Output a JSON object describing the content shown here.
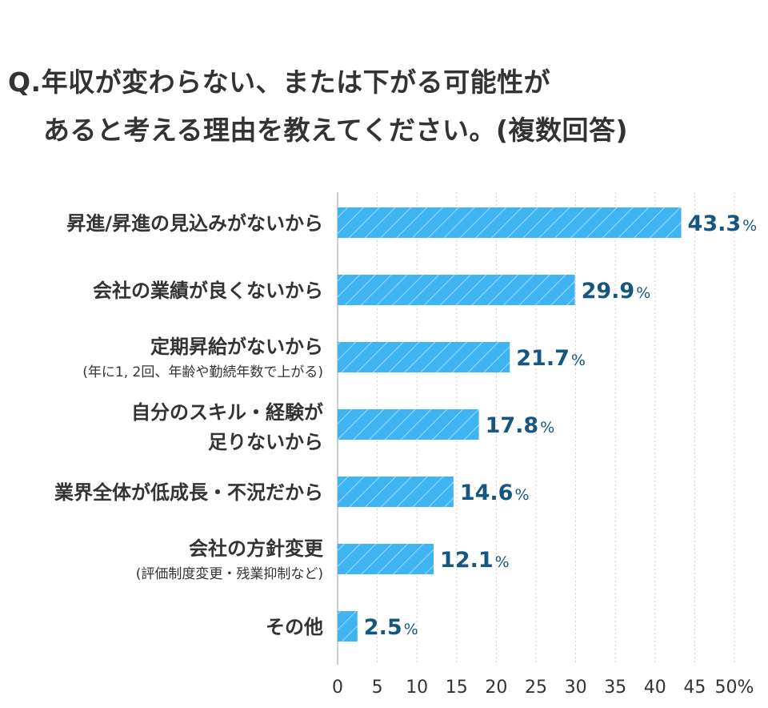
{
  "title": {
    "line1": "Q.年収が変わらない、または下がる可能性が",
    "line2": "あると考える理由を教えてください。(複数回答)"
  },
  "chart_data": {
    "type": "bar",
    "orientation": "horizontal",
    "categories": [
      [
        "昇進/昇進の見込みがないから"
      ],
      [
        "会社の業績が良くないから"
      ],
      [
        "定期昇給がないから",
        "(年に1, 2回、年齢や勤続年数で上がる)"
      ],
      [
        "自分のスキル・経験が",
        "足りないから"
      ],
      [
        "業界全体が低成長・不況だから"
      ],
      [
        "会社の方針変更",
        "(評価制度変更・残業抑制など)"
      ],
      [
        "その他"
      ]
    ],
    "values": [
      43.3,
      29.9,
      21.7,
      17.8,
      14.6,
      12.1,
      2.5
    ],
    "data_labels": [
      "43.3",
      "29.9",
      "21.7",
      "17.8",
      "14.6",
      "12.1",
      "2.5"
    ],
    "value_suffix": "%",
    "xlim": [
      0,
      50
    ],
    "xticks": [
      "0",
      "5",
      "10",
      "15",
      "20",
      "25",
      "30",
      "35",
      "40",
      "45",
      "50%"
    ],
    "grid": "vertical-dotted",
    "colors": {
      "bar": "#3fb4f3",
      "bar_hatch": "#9fdcff",
      "data_label": "#17577f",
      "text": "#333333",
      "grid": "#cccccc"
    }
  }
}
